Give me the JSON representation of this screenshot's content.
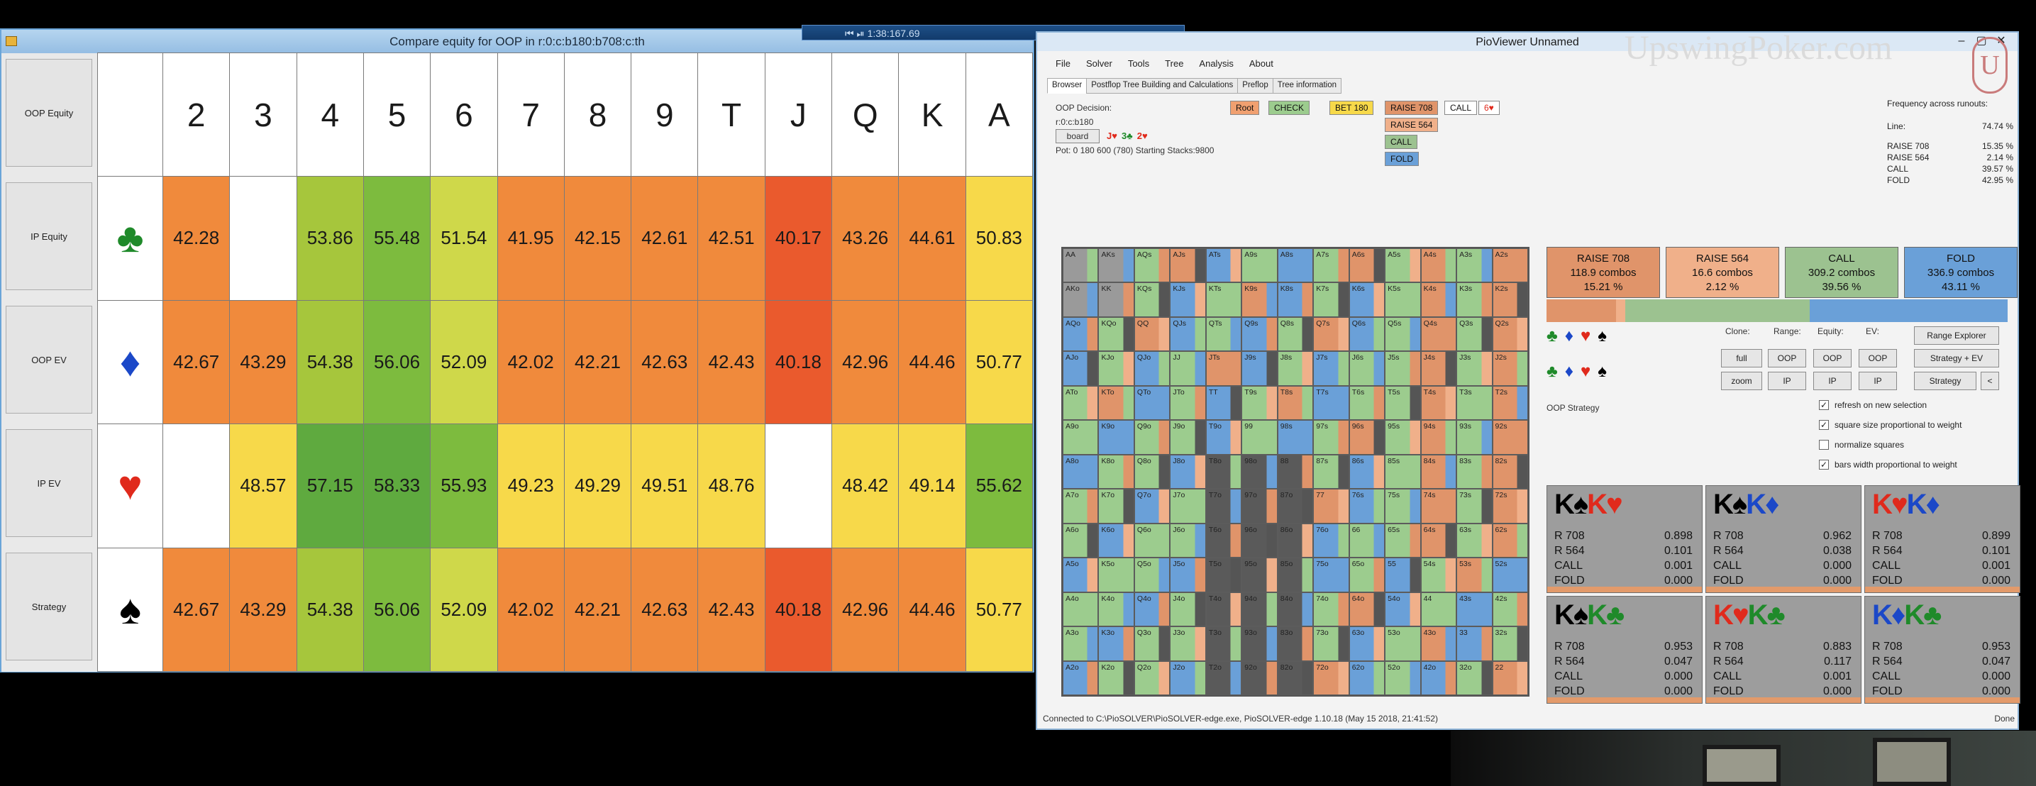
{
  "left_window": {
    "title": "Compare equity for OOP in r:0:c:b180:b708:c:th",
    "sidebar": [
      "OOP Equity",
      "IP Equity",
      "OOP EV",
      "IP EV",
      "Strategy"
    ],
    "header": [
      "2",
      "3",
      "4",
      "5",
      "6",
      "7",
      "8",
      "9",
      "T",
      "J",
      "Q",
      "K",
      "A"
    ],
    "suits": [
      {
        "name": "clubs",
        "glyph": "♣",
        "color": "#1f8a2a"
      },
      {
        "name": "diamonds",
        "glyph": "♦",
        "color": "#1b48c8"
      },
      {
        "name": "hearts",
        "glyph": "♥",
        "color": "#e02a1c"
      },
      {
        "name": "spades",
        "glyph": "♠",
        "color": "#000000"
      }
    ],
    "rows": [
      [
        "42.28",
        "",
        "53.86",
        "55.48",
        "51.54",
        "41.95",
        "42.15",
        "42.61",
        "42.51",
        "40.17",
        "43.26",
        "44.61",
        "50.83"
      ],
      [
        "42.67",
        "43.29",
        "54.38",
        "56.06",
        "52.09",
        "42.02",
        "42.21",
        "42.63",
        "42.43",
        "40.18",
        "42.96",
        "44.46",
        "50.77"
      ],
      [
        "",
        "48.57",
        "57.15",
        "58.33",
        "55.93",
        "49.23",
        "49.29",
        "49.51",
        "48.76",
        "",
        "48.42",
        "49.14",
        "55.62"
      ],
      [
        "42.67",
        "43.29",
        "54.38",
        "56.06",
        "52.09",
        "42.02",
        "42.21",
        "42.63",
        "42.43",
        "40.18",
        "42.96",
        "44.46",
        "50.77"
      ]
    ]
  },
  "taskbar": {
    "text": "⏮ ⏯      1:38:167.69"
  },
  "right_window": {
    "title": "PioViewer Unnamed",
    "menu": [
      "File",
      "Solver",
      "Tools",
      "Tree",
      "Analysis",
      "About"
    ],
    "tabs": [
      "Browser",
      "Postflop Tree Building and Calculations",
      "Preflop",
      "Tree information"
    ],
    "oop_decision": "OOP Decision:",
    "line_text": "r:0:c:b180",
    "board_label": "board",
    "board_cards": [
      {
        "t": "J♥",
        "c": "#e02a1c"
      },
      {
        "t": "3♣",
        "c": "#1f8a2a"
      },
      {
        "t": "2♥",
        "c": "#e02a1c"
      }
    ],
    "pot_text": "Pot: 0 180 600 (780) Starting Stacks:9800",
    "tree_nodes": {
      "root": "Root",
      "check": "CHECK",
      "bet": "BET 180",
      "raise708": "RAISE 708",
      "call": "CALL",
      "x": "6♥",
      "raise564": "RAISE 564",
      "call2": "CALL",
      "fold": "FOLD"
    },
    "freq": {
      "title": "Frequency across runouts:",
      "line_label": "Line:",
      "line_val": "74.74 %",
      "rows": [
        [
          "RAISE 708",
          "15.35 %"
        ],
        [
          "RAISE 564",
          "2.14 %"
        ],
        [
          "CALL",
          "39.57 %"
        ],
        [
          "FOLD",
          "42.95 %"
        ]
      ]
    },
    "action_boxes": [
      {
        "l1": "RAISE 708",
        "l2": "118.9 combos",
        "l3": "15.21 %",
        "bg": "#e0946a"
      },
      {
        "l1": "RAISE 564",
        "l2": "16.6 combos",
        "l3": "2.12 %",
        "bg": "#f0b08a"
      },
      {
        "l1": "CALL",
        "l2": "309.2 combos",
        "l3": "39.56 %",
        "bg": "#9cc290"
      },
      {
        "l1": "FOLD",
        "l2": "336.9 combos",
        "l3": "43.11 %",
        "bg": "#6aa0d8"
      }
    ],
    "controls": {
      "clone": "Clone:",
      "range": "Range:",
      "equity": "Equity:",
      "ev": "EV:",
      "range_explorer": "Range Explorer",
      "full": "full",
      "zoom": "zoom",
      "oop": "OOP",
      "ip": "IP",
      "strategy_ev": "Strategy + EV",
      "strategy": "Strategy",
      "lt": "<",
      "oop_strategy": "OOP Strategy"
    },
    "checkboxes": [
      {
        "label": "refresh on new selection",
        "checked": "✓"
      },
      {
        "label": "square size proportional to weight",
        "checked": "✓"
      },
      {
        "label": "normalize squares",
        "checked": ""
      },
      {
        "label": "bars width proportional to weight",
        "checked": "✓"
      }
    ],
    "combos": [
      {
        "c1": "K♠",
        "c1c": "#000",
        "c2": "K♥",
        "c2c": "#e02a1c",
        "vals": [
          [
            "R 708",
            "0.898"
          ],
          [
            "R 564",
            "0.101"
          ],
          [
            "CALL",
            "0.001"
          ],
          [
            "FOLD",
            "0.000"
          ]
        ]
      },
      {
        "c1": "K♠",
        "c1c": "#000",
        "c2": "K♦",
        "c2c": "#1b48c8",
        "vals": [
          [
            "R 708",
            "0.962"
          ],
          [
            "R 564",
            "0.038"
          ],
          [
            "CALL",
            "0.000"
          ],
          [
            "FOLD",
            "0.000"
          ]
        ]
      },
      {
        "c1": "K♥",
        "c1c": "#e02a1c",
        "c2": "K♦",
        "c2c": "#1b48c8",
        "vals": [
          [
            "R 708",
            "0.899"
          ],
          [
            "R 564",
            "0.101"
          ],
          [
            "CALL",
            "0.001"
          ],
          [
            "FOLD",
            "0.000"
          ]
        ]
      },
      {
        "c1": "K♠",
        "c1c": "#000",
        "c2": "K♣",
        "c2c": "#1f8a2a",
        "vals": [
          [
            "R 708",
            "0.953"
          ],
          [
            "R 564",
            "0.047"
          ],
          [
            "CALL",
            "0.000"
          ],
          [
            "FOLD",
            "0.000"
          ]
        ]
      },
      {
        "c1": "K♥",
        "c1c": "#e02a1c",
        "c2": "K♣",
        "c2c": "#1f8a2a",
        "vals": [
          [
            "R 708",
            "0.883"
          ],
          [
            "R 564",
            "0.117"
          ],
          [
            "CALL",
            "0.001"
          ],
          [
            "FOLD",
            "0.000"
          ]
        ]
      },
      {
        "c1": "K♦",
        "c1c": "#1b48c8",
        "c2": "K♣",
        "c2c": "#1f8a2a",
        "vals": [
          [
            "R 708",
            "0.953"
          ],
          [
            "R 564",
            "0.047"
          ],
          [
            "CALL",
            "0.000"
          ],
          [
            "FOLD",
            "0.000"
          ]
        ]
      }
    ],
    "status_left": "Connected to C:\\PioSOLVER\\PioSOLVER-edge.exe, PioSOLVER-edge 1.10.18 (May 15 2018, 21:41:52)",
    "status_right": "Done"
  },
  "watermark": "UpswingPoker.com",
  "watermark_logo": "U",
  "colors": {
    "green": "#6db33f",
    "lime": "#a6c63c",
    "yellowgreen": "#cfd84a",
    "yellow": "#f7d94a",
    "orange": "#f08a3c",
    "red": "#ea5a2d"
  }
}
